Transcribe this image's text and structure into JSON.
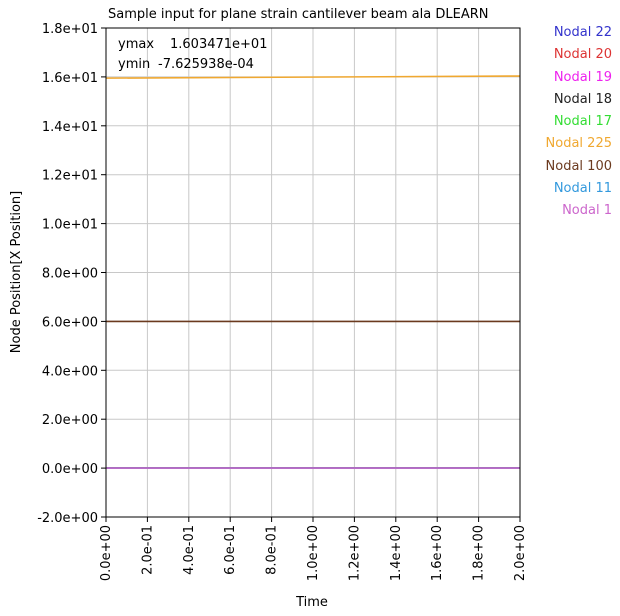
{
  "chart_data": {
    "type": "line",
    "title": "Sample input for plane strain cantilever beam ala DLEARN",
    "xlabel": "Time",
    "ylabel": "Node Position[X Position]",
    "xlim": [
      0.0,
      2.0
    ],
    "ylim": [
      -2.0,
      18.0
    ],
    "x_ticks": [
      0.0,
      0.2,
      0.4,
      0.6,
      0.8,
      1.0,
      1.2,
      1.4,
      1.6,
      1.8,
      2.0
    ],
    "x_tick_labels": [
      "0.0e+00",
      "2.0e-01",
      "4.0e-01",
      "6.0e-01",
      "8.0e-01",
      "1.0e+00",
      "1.2e+00",
      "1.4e+00",
      "1.6e+00",
      "1.8e+00",
      "2.0e+00"
    ],
    "y_ticks": [
      -2,
      0,
      2,
      4,
      6,
      8,
      10,
      12,
      14,
      16,
      18
    ],
    "y_tick_labels": [
      "-2.0e+00",
      "0.0e+00",
      "2.0e+00",
      "4.0e+00",
      "6.0e+00",
      "8.0e+00",
      "1.0e+01",
      "1.2e+01",
      "1.4e+01",
      "1.6e+01",
      "1.8e+01"
    ],
    "grid": true,
    "legend_position": "right",
    "annotations": {
      "ymax_label": "ymax",
      "ymax_value": "1.603471e+01",
      "ymin_label": "ymin",
      "ymin_value": "-7.625938e-04"
    },
    "series": [
      {
        "name": "Nodal 22",
        "color": "#3333cc",
        "x": [
          0.0,
          2.0
        ],
        "y": [
          0.0,
          0.0
        ]
      },
      {
        "name": "Nodal 20",
        "color": "#dd3333",
        "x": [
          0.0,
          2.0
        ],
        "y": [
          0.0,
          0.0
        ]
      },
      {
        "name": "Nodal 19",
        "color": "#ee22ee",
        "x": [
          0.0,
          2.0
        ],
        "y": [
          0.0,
          0.0
        ]
      },
      {
        "name": "Nodal 18",
        "color": "#222222",
        "x": [
          0.0,
          2.0
        ],
        "y": [
          0.0,
          0.0
        ]
      },
      {
        "name": "Nodal 17",
        "color": "#33dd33",
        "x": [
          0.0,
          2.0
        ],
        "y": [
          0.0,
          0.0
        ]
      },
      {
        "name": "Nodal 225",
        "color": "#f0a830",
        "x": [
          0.0,
          2.0
        ],
        "y": [
          15.95,
          16.03471
        ]
      },
      {
        "name": "Nodal 100",
        "color": "#6b3a1f",
        "x": [
          0.0,
          2.0
        ],
        "y": [
          6.0,
          6.0
        ]
      },
      {
        "name": "Nodal 11",
        "color": "#3399dd",
        "x": [
          0.0,
          2.0
        ],
        "y": [
          0.0,
          0.0
        ]
      },
      {
        "name": "Nodal 1",
        "color": "#cc66cc",
        "x": [
          0.0,
          2.0
        ],
        "y": [
          0.0,
          0.0
        ]
      }
    ]
  }
}
